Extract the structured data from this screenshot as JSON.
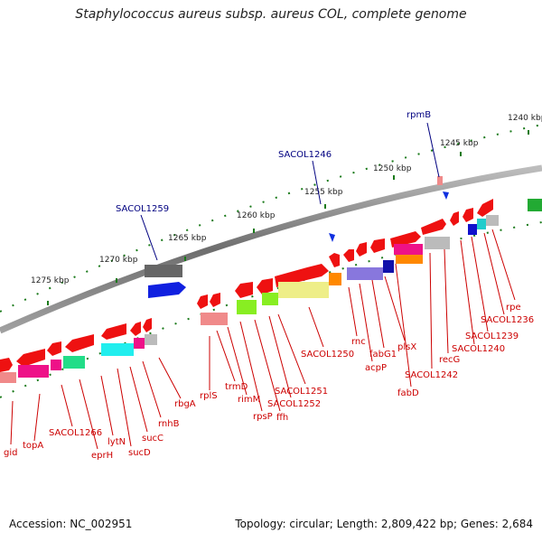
{
  "title": "Staphylococcus aureus subsp. aureus COL, complete genome",
  "footer": {
    "accession": "Accession: NC_002951",
    "stats": "Topology: circular; Length: 2,809,422 bp; Genes: 2,684"
  },
  "scale_labels": [
    "1240 kbp",
    "1245 kbp",
    "1250 kbp",
    "1255 kbp",
    "1260 kbp",
    "1265 kbp",
    "1270 kbp",
    "1275 kbp"
  ],
  "blue_labels": [
    "rpmB",
    "SACOL1246",
    "SACOL1259"
  ],
  "gene_labels": [
    "rpe",
    "SACOL1236",
    "SACOL1239",
    "SACOL1240",
    "recG",
    "SACOL1242",
    "fabD",
    "plsX",
    "fabG1",
    "acpP",
    "rnc",
    "SACOL1250",
    "SACOL1251",
    "SACOL1252",
    "ffh",
    "rpsP",
    "rimM",
    "trmD",
    "rplS",
    "rbgA",
    "rnhB",
    "sucC",
    "sucD",
    "lytN",
    "eprH",
    "SACOL1266",
    "topA",
    "gid"
  ],
  "colors": {
    "backbone": "#7a7a7a",
    "gene_red": "#ee1111",
    "scale_green": "#1a7a1a",
    "label_red": "#cc0000",
    "label_blue": "#000080"
  }
}
